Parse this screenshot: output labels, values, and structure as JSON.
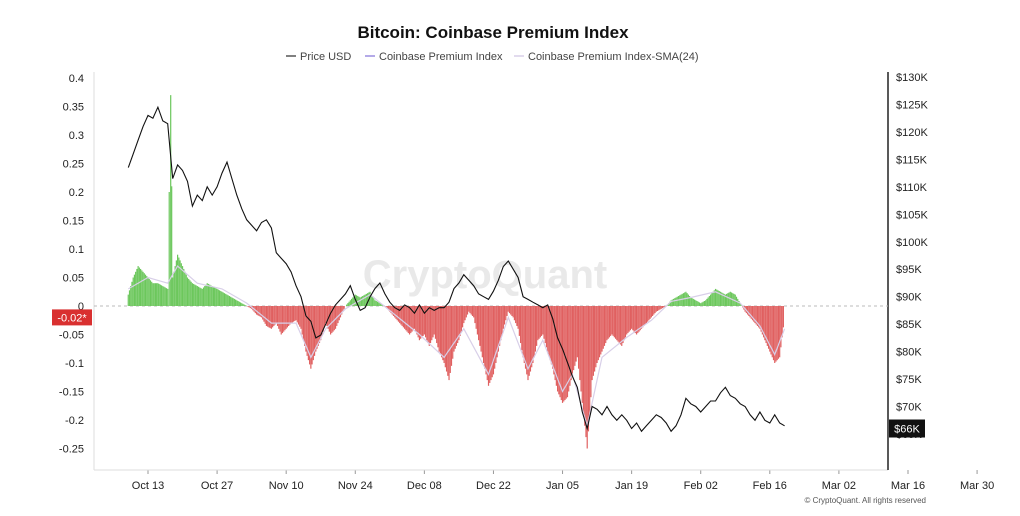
{
  "chart_data": {
    "type": "line",
    "title": "Bitcoin: Coinbase Premium Index",
    "watermark": "CryptoQuant",
    "copyright": "© CryptoQuant. All rights reserved",
    "legend": {
      "placement": "top-center",
      "items": [
        {
          "label": "Price USD",
          "color": "#555555"
        },
        {
          "label": "Coinbase Premium Index",
          "color": "#9b8ee0"
        },
        {
          "label": "Coinbase Premium Index-SMA(24)",
          "color": "#d8cfe8"
        }
      ]
    },
    "x_ticks": [
      "Oct 13",
      "Oct 27",
      "Nov 10",
      "Nov 24",
      "Dec 08",
      "Dec 22",
      "Jan 05",
      "Jan 19",
      "Feb 02",
      "Feb 16",
      "Mar 02",
      "Mar 16",
      "Mar 30"
    ],
    "left_axis": {
      "ylim": [
        -0.275,
        0.4
      ],
      "ticks": [
        "0.4",
        "0.35",
        "0.3",
        "0.25",
        "0.2",
        "0.15",
        "0.1",
        "0.05",
        "0",
        "-0.05",
        "-0.1",
        "-0.15",
        "-0.2",
        "-0.25"
      ],
      "current_label": "-0.02*",
      "current_value": -0.02
    },
    "right_axis": {
      "ylim": [
        62000,
        130000
      ],
      "ticks": [
        "$130K",
        "$125K",
        "$120K",
        "$115K",
        "$110K",
        "$105K",
        "$100K",
        "$95K",
        "$90K",
        "$85K",
        "$80K",
        "$75K",
        "$70K",
        "$65K"
      ],
      "current_label": "$66K",
      "current_value": 66000
    },
    "colors": {
      "price": "#111111",
      "premium_positive": "#6cc75c",
      "premium_negative": "#e06060",
      "sma": "#d8cfe8",
      "zero_line": "#bbbbbb",
      "badge_left": "#d93030",
      "badge_right": "#111111"
    },
    "price_series": [
      [
        -4,
        113500
      ],
      [
        -3,
        116000
      ],
      [
        -2,
        118500
      ],
      [
        -1,
        121000
      ],
      [
        0,
        123000
      ],
      [
        1,
        122500
      ],
      [
        2,
        124500
      ],
      [
        3,
        122000
      ],
      [
        4,
        121500
      ],
      [
        5,
        111500
      ],
      [
        6,
        114000
      ],
      [
        7,
        113000
      ],
      [
        8,
        111000
      ],
      [
        9,
        106500
      ],
      [
        10,
        108500
      ],
      [
        11,
        107500
      ],
      [
        12,
        110000
      ],
      [
        13,
        108500
      ],
      [
        14,
        110000
      ],
      [
        15,
        112500
      ],
      [
        16,
        114500
      ],
      [
        17,
        111500
      ],
      [
        18,
        108500
      ],
      [
        19,
        106000
      ],
      [
        20,
        104000
      ],
      [
        21,
        103000
      ],
      [
        22,
        102000
      ],
      [
        23,
        103500
      ],
      [
        24,
        104000
      ],
      [
        25,
        102500
      ],
      [
        26,
        98000
      ],
      [
        27,
        97000
      ],
      [
        28,
        96000
      ],
      [
        29,
        94500
      ],
      [
        30,
        92000
      ],
      [
        31,
        90000
      ],
      [
        32,
        86500
      ],
      [
        33,
        85500
      ],
      [
        34,
        82500
      ],
      [
        35,
        83000
      ],
      [
        36,
        85000
      ],
      [
        37,
        87000
      ],
      [
        38,
        88500
      ],
      [
        39,
        89500
      ],
      [
        40,
        90500
      ],
      [
        41,
        92000
      ],
      [
        42,
        89500
      ],
      [
        43,
        87500
      ],
      [
        44,
        88000
      ],
      [
        45,
        90000
      ],
      [
        46,
        91500
      ],
      [
        47,
        92500
      ],
      [
        48,
        90500
      ],
      [
        49,
        89000
      ],
      [
        50,
        88000
      ],
      [
        51,
        87500
      ],
      [
        52,
        88500
      ],
      [
        53,
        88000
      ],
      [
        54,
        87000
      ],
      [
        55,
        88500
      ],
      [
        56,
        87000
      ],
      [
        57,
        88000
      ],
      [
        58,
        87500
      ],
      [
        59,
        88000
      ],
      [
        60,
        88000
      ],
      [
        61,
        89000
      ],
      [
        62,
        91500
      ],
      [
        63,
        92500
      ],
      [
        64,
        94000
      ],
      [
        65,
        93000
      ],
      [
        66,
        92000
      ],
      [
        67,
        90500
      ],
      [
        68,
        90000
      ],
      [
        69,
        89500
      ],
      [
        70,
        91000
      ],
      [
        71,
        93000
      ],
      [
        72,
        95500
      ],
      [
        73,
        96500
      ],
      [
        74,
        95000
      ],
      [
        75,
        93500
      ],
      [
        76,
        90000
      ],
      [
        77,
        89500
      ],
      [
        78,
        89000
      ],
      [
        79,
        88500
      ],
      [
        80,
        88000
      ],
      [
        81,
        88500
      ],
      [
        82,
        86000
      ],
      [
        83,
        82500
      ],
      [
        84,
        80500
      ],
      [
        85,
        78000
      ],
      [
        86,
        75500
      ],
      [
        87,
        73500
      ],
      [
        88,
        69000
      ],
      [
        89,
        66000
      ],
      [
        90,
        70000
      ],
      [
        91,
        69500
      ],
      [
        92,
        68500
      ],
      [
        93,
        70000
      ],
      [
        94,
        68500
      ],
      [
        95,
        67500
      ],
      [
        96,
        68500
      ],
      [
        97,
        67500
      ],
      [
        98,
        66000
      ],
      [
        99,
        67000
      ],
      [
        100,
        65500
      ],
      [
        101,
        66500
      ],
      [
        102,
        67500
      ],
      [
        103,
        68500
      ],
      [
        104,
        68000
      ],
      [
        105,
        67000
      ],
      [
        106,
        65500
      ],
      [
        107,
        66500
      ],
      [
        108,
        68500
      ],
      [
        109,
        71500
      ],
      [
        110,
        70500
      ],
      [
        111,
        70000
      ],
      [
        112,
        69000
      ],
      [
        113,
        70000
      ],
      [
        114,
        71000
      ],
      [
        115,
        71000
      ],
      [
        116,
        72500
      ],
      [
        117,
        73500
      ],
      [
        118,
        72000
      ],
      [
        119,
        71500
      ],
      [
        120,
        70500
      ],
      [
        121,
        70000
      ],
      [
        122,
        68500
      ],
      [
        123,
        67500
      ],
      [
        124,
        69000
      ],
      [
        125,
        67500
      ],
      [
        126,
        67000
      ],
      [
        127,
        68500
      ],
      [
        128,
        67000
      ],
      [
        129,
        66500
      ]
    ],
    "premium_series": [
      [
        -4,
        0.02
      ],
      [
        -3,
        0.05
      ],
      [
        -2,
        0.07
      ],
      [
        -1,
        0.06
      ],
      [
        0,
        0.05
      ],
      [
        1,
        0.04
      ],
      [
        2,
        0.04
      ],
      [
        3,
        0.035
      ],
      [
        4,
        0.03
      ],
      [
        4.6,
        0.37
      ],
      [
        5,
        0.05
      ],
      [
        6,
        0.09
      ],
      [
        7,
        0.07
      ],
      [
        8,
        0.05
      ],
      [
        9,
        0.04
      ],
      [
        10,
        0.035
      ],
      [
        11,
        0.03
      ],
      [
        12,
        0.04
      ],
      [
        13,
        0.035
      ],
      [
        14,
        0.03
      ],
      [
        15,
        0.025
      ],
      [
        16,
        0.02
      ],
      [
        17,
        0.015
      ],
      [
        18,
        0.01
      ],
      [
        19,
        0.005
      ],
      [
        20,
        0.0
      ],
      [
        21,
        -0.005
      ],
      [
        22,
        -0.015
      ],
      [
        23,
        -0.02
      ],
      [
        24,
        -0.035
      ],
      [
        25,
        -0.04
      ],
      [
        26,
        -0.03
      ],
      [
        27,
        -0.05
      ],
      [
        28,
        -0.04
      ],
      [
        29,
        -0.03
      ],
      [
        30,
        -0.025
      ],
      [
        31,
        -0.04
      ],
      [
        32,
        -0.08
      ],
      [
        33,
        -0.11
      ],
      [
        34,
        -0.08
      ],
      [
        35,
        -0.06
      ],
      [
        36,
        -0.03
      ],
      [
        37,
        -0.05
      ],
      [
        38,
        -0.04
      ],
      [
        39,
        -0.02
      ],
      [
        40,
        0.0
      ],
      [
        41,
        0.01
      ],
      [
        42,
        0.02
      ],
      [
        43,
        0.015
      ],
      [
        44,
        0.02
      ],
      [
        45,
        0.025
      ],
      [
        46,
        0.01
      ],
      [
        47,
        0.005
      ],
      [
        48,
        0.0
      ],
      [
        49,
        -0.01
      ],
      [
        50,
        -0.02
      ],
      [
        51,
        -0.03
      ],
      [
        52,
        -0.04
      ],
      [
        53,
        -0.05
      ],
      [
        54,
        -0.04
      ],
      [
        55,
        -0.06
      ],
      [
        56,
        -0.05
      ],
      [
        57,
        -0.07
      ],
      [
        58,
        -0.05
      ],
      [
        59,
        -0.08
      ],
      [
        60,
        -0.1
      ],
      [
        61,
        -0.13
      ],
      [
        62,
        -0.08
      ],
      [
        63,
        -0.06
      ],
      [
        64,
        -0.03
      ],
      [
        65,
        -0.01
      ],
      [
        66,
        -0.02
      ],
      [
        67,
        -0.06
      ],
      [
        68,
        -0.1
      ],
      [
        69,
        -0.14
      ],
      [
        70,
        -0.12
      ],
      [
        71,
        -0.08
      ],
      [
        72,
        -0.04
      ],
      [
        73,
        -0.01
      ],
      [
        74,
        -0.02
      ],
      [
        75,
        -0.04
      ],
      [
        76,
        -0.09
      ],
      [
        77,
        -0.13
      ],
      [
        78,
        -0.1
      ],
      [
        79,
        -0.06
      ],
      [
        80,
        -0.05
      ],
      [
        81,
        -0.08
      ],
      [
        82,
        -0.11
      ],
      [
        83,
        -0.15
      ],
      [
        84,
        -0.17
      ],
      [
        85,
        -0.16
      ],
      [
        86,
        -0.12
      ],
      [
        87,
        -0.09
      ],
      [
        88,
        -0.17
      ],
      [
        89,
        -0.25
      ],
      [
        90,
        -0.13
      ],
      [
        91,
        -0.1
      ],
      [
        92,
        -0.08
      ],
      [
        93,
        -0.06
      ],
      [
        94,
        -0.05
      ],
      [
        95,
        -0.06
      ],
      [
        96,
        -0.07
      ],
      [
        97,
        -0.05
      ],
      [
        98,
        -0.04
      ],
      [
        99,
        -0.05
      ],
      [
        100,
        -0.04
      ],
      [
        101,
        -0.03
      ],
      [
        102,
        -0.02
      ],
      [
        103,
        -0.01
      ],
      [
        104,
        -0.005
      ],
      [
        105,
        0.0
      ],
      [
        106,
        0.01
      ],
      [
        107,
        0.015
      ],
      [
        108,
        0.02
      ],
      [
        109,
        0.025
      ],
      [
        110,
        0.015
      ],
      [
        111,
        0.01
      ],
      [
        112,
        0.005
      ],
      [
        113,
        0.01
      ],
      [
        114,
        0.02
      ],
      [
        115,
        0.03
      ],
      [
        116,
        0.025
      ],
      [
        117,
        0.02
      ],
      [
        118,
        0.025
      ],
      [
        119,
        0.02
      ],
      [
        120,
        0.005
      ],
      [
        121,
        -0.01
      ],
      [
        122,
        -0.02
      ],
      [
        123,
        -0.03
      ],
      [
        124,
        -0.04
      ],
      [
        125,
        -0.06
      ],
      [
        126,
        -0.08
      ],
      [
        127,
        -0.1
      ],
      [
        128,
        -0.09
      ],
      [
        129,
        -0.02
      ]
    ],
    "sma_series": [
      [
        -4,
        0.03
      ],
      [
        0,
        0.05
      ],
      [
        4,
        0.04
      ],
      [
        6,
        0.07
      ],
      [
        10,
        0.04
      ],
      [
        15,
        0.03
      ],
      [
        20,
        0.005
      ],
      [
        25,
        -0.03
      ],
      [
        30,
        -0.03
      ],
      [
        33,
        -0.09
      ],
      [
        36,
        -0.04
      ],
      [
        40,
        -0.005
      ],
      [
        45,
        0.02
      ],
      [
        50,
        -0.015
      ],
      [
        55,
        -0.05
      ],
      [
        60,
        -0.09
      ],
      [
        64,
        -0.04
      ],
      [
        69,
        -0.12
      ],
      [
        73,
        -0.02
      ],
      [
        77,
        -0.11
      ],
      [
        80,
        -0.06
      ],
      [
        84,
        -0.15
      ],
      [
        86,
        -0.12
      ],
      [
        89,
        -0.21
      ],
      [
        92,
        -0.09
      ],
      [
        97,
        -0.055
      ],
      [
        102,
        -0.025
      ],
      [
        106,
        0.008
      ],
      [
        110,
        0.015
      ],
      [
        115,
        0.025
      ],
      [
        120,
        0.005
      ],
      [
        124,
        -0.035
      ],
      [
        127,
        -0.085
      ],
      [
        129,
        -0.04
      ]
    ]
  }
}
